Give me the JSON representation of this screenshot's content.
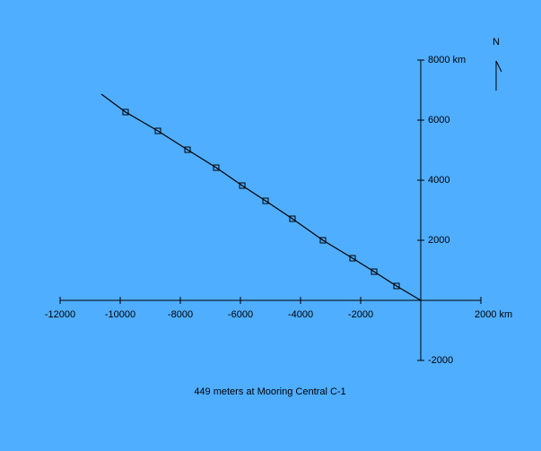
{
  "chart_data": {
    "type": "line",
    "title": "449 meters at Mooring Central C-1",
    "north_label": "N",
    "x": [
      -10627,
      -9821,
      -8746,
      -7761,
      -6806,
      -5940,
      -5164,
      -4269,
      -3254,
      -2269,
      -1552,
      -806,
      0
    ],
    "y": [
      6866,
      6269,
      5642,
      5015,
      4418,
      3821,
      3313,
      2716,
      2000,
      1403,
      955,
      478,
      0
    ],
    "color": "#000000",
    "marker": "square",
    "xlim": [
      -12000,
      2000
    ],
    "ylim": [
      -2000,
      8000
    ],
    "xticks": [
      -12000,
      -10000,
      -8000,
      -6000,
      -4000,
      -2000,
      {
        "value": 2000,
        "label": "2000 km"
      }
    ],
    "yticks": [
      -2000,
      2000,
      4000,
      6000,
      {
        "value": 8000,
        "label": "8000 km"
      }
    ]
  }
}
